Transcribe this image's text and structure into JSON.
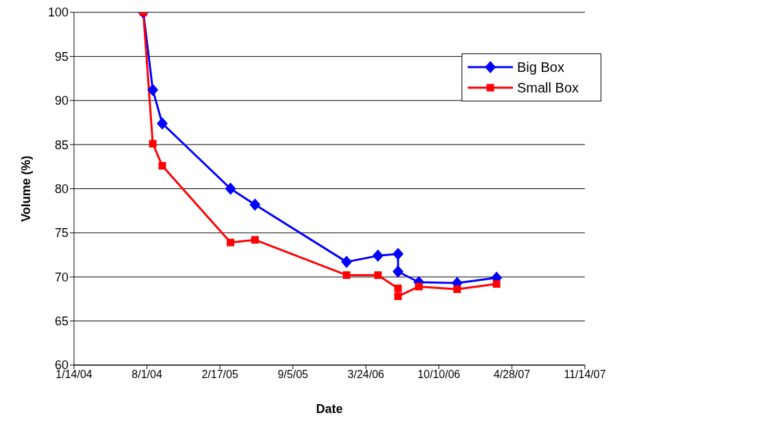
{
  "chart_data": {
    "type": "line",
    "xlabel": "Date",
    "ylabel": "Volume (%)",
    "x": [
      "2004-07-22",
      "2004-08-17",
      "2004-09-12",
      "2005-03-18",
      "2005-05-24",
      "2006-01-30",
      "2006-04-26",
      "2006-06-20",
      "2006-06-20",
      "2006-08-16",
      "2006-11-29",
      "2007-03-17"
    ],
    "series": [
      {
        "name": "Big Box",
        "color": "#0000ff",
        "marker": "diamond",
        "values": [
          100,
          91.2,
          87.4,
          80,
          78.2,
          71.7,
          72.4,
          72.6,
          70.6,
          69.4,
          69.3,
          69.9
        ]
      },
      {
        "name": "Small Box",
        "color": "#ff0000",
        "marker": "square",
        "values": [
          100,
          85.1,
          82.6,
          73.9,
          74.2,
          70.2,
          70.2,
          68.7,
          67.8,
          68.9,
          68.6,
          69.2
        ]
      }
    ],
    "xlim": [
      "2004-01-14",
      "2007-11-14"
    ],
    "xticks": [
      {
        "value": "2004-01-14",
        "label": "1/14/04"
      },
      {
        "value": "2004-08-01",
        "label": "8/1/04"
      },
      {
        "value": "2005-02-17",
        "label": "2/17/05"
      },
      {
        "value": "2005-09-05",
        "label": "9/5/05"
      },
      {
        "value": "2006-03-24",
        "label": "3/24/06"
      },
      {
        "value": "2006-10-10",
        "label": "10/10/06"
      },
      {
        "value": "2007-04-28",
        "label": "4/28/07"
      },
      {
        "value": "2007-11-14",
        "label": "11/14/07"
      }
    ],
    "ylim": [
      60,
      100
    ],
    "yticks": [
      60,
      65,
      70,
      75,
      80,
      85,
      90,
      95,
      100
    ],
    "grid": "y",
    "legend": "top right",
    "line_style": "solid"
  }
}
